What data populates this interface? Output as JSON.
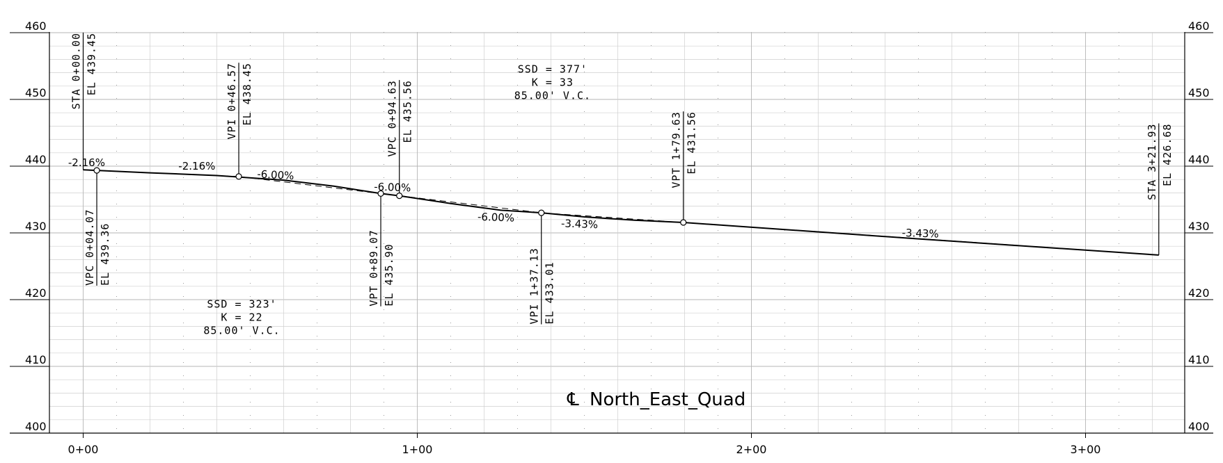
{
  "title": "North_East_Quad",
  "title_symbol": "℄",
  "elevation_ticks": [
    "400",
    "410",
    "420",
    "430",
    "440",
    "450",
    "460"
  ],
  "station_ticks": [
    {
      "label": "0+00",
      "sta": 0
    },
    {
      "label": "1+00",
      "sta": 100
    },
    {
      "label": "2+00",
      "sta": 200
    },
    {
      "label": "3+00",
      "sta": 300
    }
  ],
  "axes": {
    "station_range": [
      -10,
      330
    ],
    "elevation_range": [
      400,
      460
    ]
  },
  "profile": [
    [
      0,
      439.45
    ],
    [
      4.07,
      439.36
    ],
    [
      20,
      439.0
    ],
    [
      40,
      438.6
    ],
    [
      60,
      437.9
    ],
    [
      75,
      437.0
    ],
    [
      89.07,
      435.9
    ],
    [
      94.63,
      435.56
    ],
    [
      110,
      434.4
    ],
    [
      125,
      433.4
    ],
    [
      137.13,
      433.01
    ],
    [
      150,
      432.4
    ],
    [
      165,
      431.9
    ],
    [
      179.63,
      431.56
    ],
    [
      250,
      429.1
    ],
    [
      321.93,
      426.68
    ]
  ],
  "tangent": [
    [
      4.07,
      439.36
    ],
    [
      46.57,
      438.45
    ],
    [
      94.63,
      435.56
    ],
    [
      137.13,
      433.01
    ],
    [
      179.63,
      431.56
    ],
    [
      321.93,
      426.68
    ]
  ],
  "markers": [
    {
      "sta": 4.07,
      "el": 439.36
    },
    {
      "sta": 46.57,
      "el": 438.45
    },
    {
      "sta": 89.07,
      "el": 435.9
    },
    {
      "sta": 94.63,
      "el": 435.56
    },
    {
      "sta": 137.13,
      "el": 433.01
    },
    {
      "sta": 179.63,
      "el": 431.56
    }
  ],
  "callouts": [
    {
      "name": "sta-begin",
      "lines": [
        "STA 0+00.00",
        "EL 439.45"
      ],
      "sta": 0,
      "el": 439.45,
      "dir": "up",
      "top": 460.0
    },
    {
      "name": "vpc-1",
      "lines": [
        "VPC 0+04.07",
        "EL 439.36"
      ],
      "sta": 4.07,
      "el": 439.36,
      "dir": "down",
      "bottom": 422.1
    },
    {
      "name": "vpi-1",
      "lines": [
        "VPI 0+46.57",
        "EL 438.45"
      ],
      "sta": 46.57,
      "el": 438.45,
      "dir": "up",
      "top": 455.5
    },
    {
      "name": "vpt-1",
      "lines": [
        "VPT 0+89.07",
        "EL 435.90"
      ],
      "sta": 89.07,
      "el": 435.9,
      "dir": "down",
      "bottom": 419.0
    },
    {
      "name": "vpc-2",
      "lines": [
        "VPC 0+94.63",
        "EL 435.56"
      ],
      "sta": 94.63,
      "el": 435.56,
      "dir": "up",
      "top": 452.9
    },
    {
      "name": "vpi-2",
      "lines": [
        "VPI 1+37.13",
        "EL 433.01"
      ],
      "sta": 137.13,
      "el": 433.01,
      "dir": "down",
      "bottom": 416.3
    },
    {
      "name": "vpt-2",
      "lines": [
        "VPT 1+79.63",
        "EL 431.56"
      ],
      "sta": 179.63,
      "el": 431.56,
      "dir": "up",
      "top": 448.2
    },
    {
      "name": "sta-end",
      "lines": [
        "STA 3+21.93",
        "EL 426.68"
      ],
      "sta": 321.93,
      "el": 426.68,
      "dir": "up",
      "top": 446.4
    }
  ],
  "grades": [
    {
      "text": "-2.16%",
      "sta": -4.5,
      "el": 440.0,
      "rot": 0
    },
    {
      "text": "-2.16%",
      "sta": 28.5,
      "el": 439.5,
      "rot": 0
    },
    {
      "text": "-6.00%",
      "sta": 52,
      "el": 438.3,
      "rot": 3
    },
    {
      "text": "-6.00%",
      "sta": 87,
      "el": 436.4,
      "rot": 2
    },
    {
      "text": "-6.00%",
      "sta": 118,
      "el": 431.9,
      "rot": 2
    },
    {
      "text": "-3.43%",
      "sta": 143,
      "el": 430.9,
      "rot": 2
    },
    {
      "text": "-3.43%",
      "sta": 245,
      "el": 429.5,
      "rot": 2
    }
  ],
  "curves": [
    {
      "name": "curve-1",
      "lines": [
        "SSD = 323'",
        "K = 22",
        "85.00' V.C."
      ],
      "sta": 47.5,
      "el": 418.8
    },
    {
      "name": "curve-2",
      "lines": [
        "SSD = 377'",
        "K = 33",
        "85.00' V.C."
      ],
      "sta": 140.5,
      "el": 454.0
    }
  ]
}
